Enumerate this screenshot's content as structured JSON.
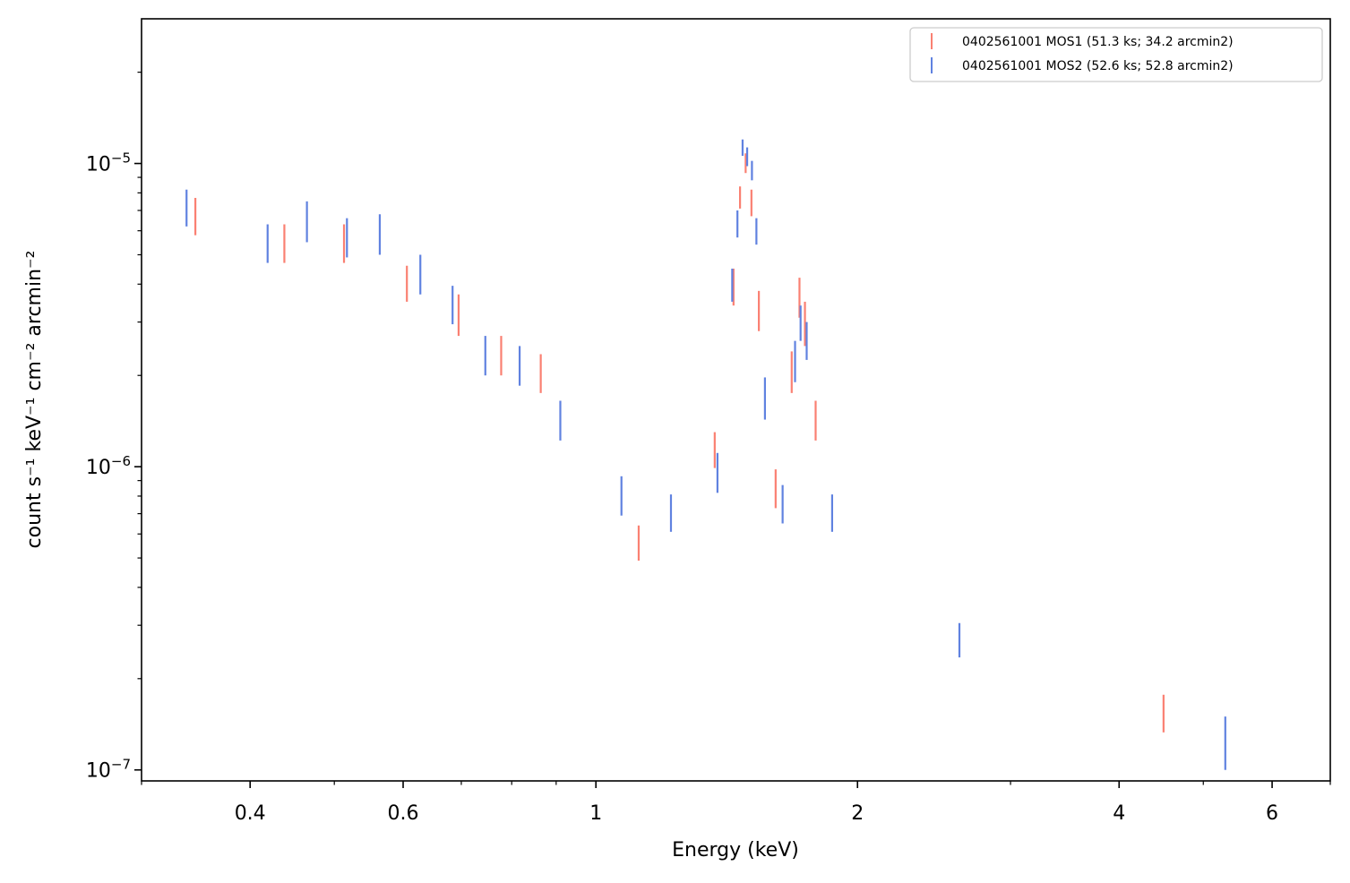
{
  "chart_data": {
    "type": "scatter",
    "xlabel": "Energy (keV)",
    "ylabel": "count s⁻¹ keV⁻¹ cm⁻² arcmin⁻²",
    "xscale": "log",
    "yscale": "log",
    "xlim": [
      0.3,
      7.0
    ],
    "ylim": [
      9.2e-08,
      3e-05
    ],
    "x_ticks": [
      {
        "value": 0.4,
        "label": "0.4"
      },
      {
        "value": 0.6,
        "label": "0.6"
      },
      {
        "value": 1,
        "label": "1"
      },
      {
        "value": 2,
        "label": "2"
      },
      {
        "value": 4,
        "label": "4"
      },
      {
        "value": 6,
        "label": "6"
      }
    ],
    "y_ticks": [
      {
        "value": 1e-07,
        "base": "10",
        "exp": "−7"
      },
      {
        "value": 1e-06,
        "base": "10",
        "exp": "−6"
      },
      {
        "value": 1e-05,
        "base": "10",
        "exp": "−5"
      }
    ],
    "grid": false,
    "legend_position": "top-right",
    "series": [
      {
        "name": "0402561001 MOS1 (51.3 ks; 34.2 arcmin2)",
        "color": "#fa8072",
        "points": [
          {
            "x": 0.346,
            "ylo": 5.8e-06,
            "yhi": 7.7e-06
          },
          {
            "x": 0.438,
            "ylo": 4.7e-06,
            "yhi": 6.3e-06
          },
          {
            "x": 0.513,
            "ylo": 4.7e-06,
            "yhi": 6.3e-06
          },
          {
            "x": 0.606,
            "ylo": 3.5e-06,
            "yhi": 4.6e-06
          },
          {
            "x": 0.695,
            "ylo": 2.7e-06,
            "yhi": 3.7e-06
          },
          {
            "x": 0.778,
            "ylo": 2e-06,
            "yhi": 2.7e-06
          },
          {
            "x": 0.864,
            "ylo": 1.75e-06,
            "yhi": 2.35e-06
          },
          {
            "x": 1.12,
            "ylo": 4.9e-07,
            "yhi": 6.4e-07
          },
          {
            "x": 1.37,
            "ylo": 9.9e-07,
            "yhi": 1.3e-06
          },
          {
            "x": 1.44,
            "ylo": 3.4e-06,
            "yhi": 4.5e-06
          },
          {
            "x": 1.465,
            "ylo": 7.1e-06,
            "yhi": 8.4e-06
          },
          {
            "x": 1.487,
            "ylo": 9.3e-06,
            "yhi": 1.08e-05
          },
          {
            "x": 1.51,
            "ylo": 6.7e-06,
            "yhi": 8.2e-06
          },
          {
            "x": 1.54,
            "ylo": 2.8e-06,
            "yhi": 3.8e-06
          },
          {
            "x": 1.61,
            "ylo": 7.3e-07,
            "yhi": 9.8e-07
          },
          {
            "x": 1.68,
            "ylo": 1.75e-06,
            "yhi": 2.4e-06
          },
          {
            "x": 1.715,
            "ylo": 3.1e-06,
            "yhi": 4.2e-06
          },
          {
            "x": 1.74,
            "ylo": 2.5e-06,
            "yhi": 3.5e-06
          },
          {
            "x": 1.79,
            "ylo": 1.22e-06,
            "yhi": 1.65e-06
          },
          {
            "x": 4.5,
            "ylo": 1.33e-07,
            "yhi": 1.77e-07
          }
        ]
      },
      {
        "name": "0402561001 MOS2 (52.6 ks; 52.8 arcmin2)",
        "color": "#6082e0",
        "points": [
          {
            "x": 0.338,
            "ylo": 6.2e-06,
            "yhi": 8.2e-06
          },
          {
            "x": 0.419,
            "ylo": 4.7e-06,
            "yhi": 6.3e-06
          },
          {
            "x": 0.465,
            "ylo": 5.5e-06,
            "yhi": 7.5e-06
          },
          {
            "x": 0.517,
            "ylo": 4.9e-06,
            "yhi": 6.6e-06
          },
          {
            "x": 0.564,
            "ylo": 5e-06,
            "yhi": 6.8e-06
          },
          {
            "x": 0.628,
            "ylo": 3.7e-06,
            "yhi": 5e-06
          },
          {
            "x": 0.684,
            "ylo": 2.95e-06,
            "yhi": 3.95e-06
          },
          {
            "x": 0.746,
            "ylo": 2e-06,
            "yhi": 2.7e-06
          },
          {
            "x": 0.817,
            "ylo": 1.85e-06,
            "yhi": 2.5e-06
          },
          {
            "x": 0.91,
            "ylo": 1.22e-06,
            "yhi": 1.65e-06
          },
          {
            "x": 1.07,
            "ylo": 6.9e-07,
            "yhi": 9.3e-07
          },
          {
            "x": 1.22,
            "ylo": 6.1e-07,
            "yhi": 8.1e-07
          },
          {
            "x": 1.38,
            "ylo": 8.2e-07,
            "yhi": 1.11e-06
          },
          {
            "x": 1.435,
            "ylo": 3.5e-06,
            "yhi": 4.5e-06
          },
          {
            "x": 1.455,
            "ylo": 5.7e-06,
            "yhi": 7e-06
          },
          {
            "x": 1.475,
            "ylo": 1.06e-05,
            "yhi": 1.2e-05
          },
          {
            "x": 1.493,
            "ylo": 9.8e-06,
            "yhi": 1.13e-05
          },
          {
            "x": 1.512,
            "ylo": 8.8e-06,
            "yhi": 1.02e-05
          },
          {
            "x": 1.53,
            "ylo": 5.4e-06,
            "yhi": 6.6e-06
          },
          {
            "x": 1.565,
            "ylo": 1.43e-06,
            "yhi": 1.97e-06
          },
          {
            "x": 1.64,
            "ylo": 6.5e-07,
            "yhi": 8.7e-07
          },
          {
            "x": 1.695,
            "ylo": 1.9e-06,
            "yhi": 2.6e-06
          },
          {
            "x": 1.72,
            "ylo": 2.6e-06,
            "yhi": 3.4e-06
          },
          {
            "x": 1.748,
            "ylo": 2.25e-06,
            "yhi": 3e-06
          },
          {
            "x": 1.87,
            "ylo": 6.1e-07,
            "yhi": 8.1e-07
          },
          {
            "x": 2.62,
            "ylo": 2.35e-07,
            "yhi": 3.05e-07
          },
          {
            "x": 5.3,
            "ylo": 1e-07,
            "yhi": 1.5e-07
          }
        ]
      }
    ]
  }
}
